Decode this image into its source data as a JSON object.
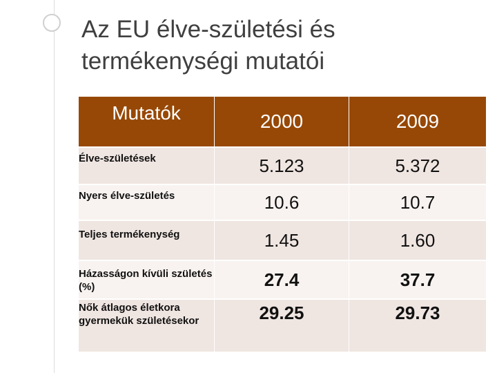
{
  "title": {
    "line1": "Az EU élve-születési és",
    "line2": "termékenységi mutatói"
  },
  "table": {
    "headers": [
      "Mutatók",
      "2000",
      "2009"
    ],
    "rows": [
      {
        "label": "Élve-születések",
        "v2000": "5.123",
        "v2009": "5.372"
      },
      {
        "label": "Nyers élve-születés",
        "v2000": "10.6",
        "v2009": "10.7"
      },
      {
        "label": "Teljes termékenység",
        "v2000": "1.45",
        "v2009": "1.60"
      },
      {
        "label": "Házasságon kívüli születés (%)",
        "v2000": "27.4",
        "v2009": "37.7"
      },
      {
        "label": "Nők átlagos életkora gyermekük születésekor",
        "v2000": "29.25",
        "v2009": "29.73"
      }
    ]
  },
  "colors": {
    "header_bg": "#974806",
    "row_dark": "#efe5e1",
    "row_light": "#f8f3f0"
  }
}
